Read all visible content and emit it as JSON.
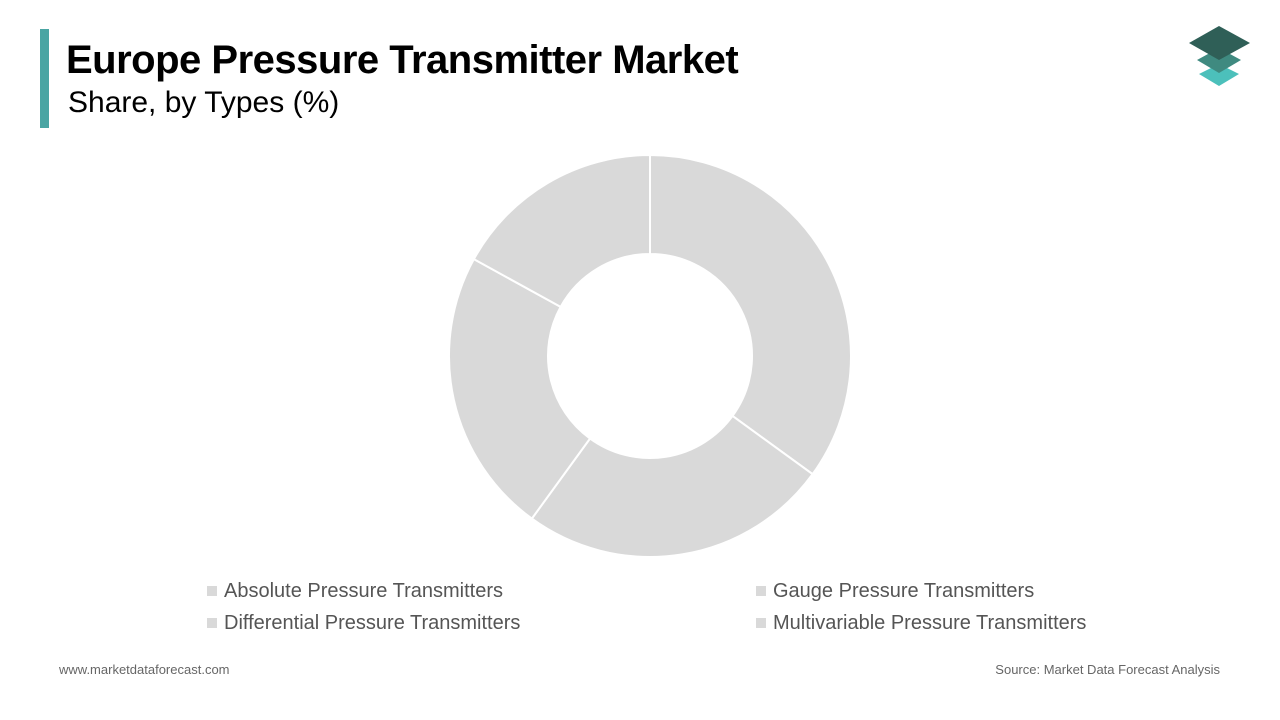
{
  "header": {
    "title": "Europe Pressure Transmitter Market",
    "subtitle": "Share, by Types (%)",
    "accent_color": "#4aa5a3"
  },
  "logo": {
    "icon": "stacked-layers-icon",
    "colors": [
      "#2f5f57",
      "#3f8a80",
      "#4cc0bb"
    ]
  },
  "chart_data": {
    "type": "pie",
    "style": "donut",
    "categories": [
      "Absolute Pressure Transmitters",
      "Gauge Pressure Transmitters",
      "Differential Pressure Transmitters",
      "Multivariable Pressure Transmitters"
    ],
    "values": [
      35,
      25,
      23,
      17
    ],
    "colors": [
      "#d9d9d9",
      "#d9d9d9",
      "#d9d9d9",
      "#d9d9d9"
    ],
    "separator_color": "#ffffff",
    "legend_position": "bottom"
  },
  "footer": {
    "website": "www.marketdataforecast.com",
    "source": "Source: Market Data Forecast Analysis"
  }
}
